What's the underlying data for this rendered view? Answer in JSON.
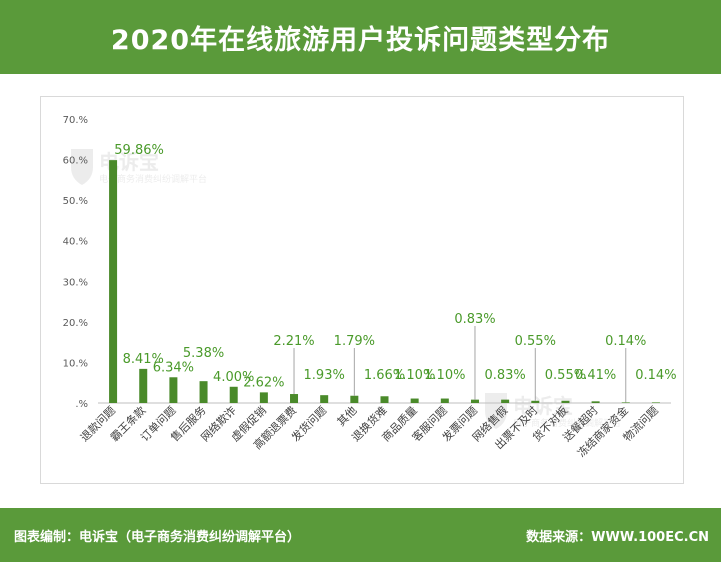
{
  "header": {
    "title": "2020年在线旅游用户投诉问题类型分布"
  },
  "footer": {
    "left": "图表编制：电诉宝（电子商务消费纠纷调解平台）",
    "right": "数据来源：WWW.100EC.CN"
  },
  "watermark": {
    "text": "电诉宝",
    "subtext": "电子商务消费纠纷调解平台"
  },
  "colors": {
    "accent": "#5a9a3a",
    "bar": "#4a8a2a",
    "label": "#4a9a2a",
    "tick": "#595959"
  },
  "chart_data": {
    "type": "bar",
    "title": "2020年在线旅游用户投诉问题类型分布",
    "xlabel": "",
    "ylabel": "",
    "ylim": [
      0,
      70
    ],
    "yticks": [
      0,
      10,
      20,
      30,
      40,
      50,
      60,
      70
    ],
    "ytick_labels": [
      ".%",
      "10.%",
      "20.%",
      "30.%",
      "40.%",
      "50.%",
      "60.%",
      "70.%"
    ],
    "grid": false,
    "categories": [
      "退款问题",
      "霸王条款",
      "订单问题",
      "售后服务",
      "网络欺诈",
      "虚假促销",
      "高额退票费",
      "发货问题",
      "其他",
      "退换货难",
      "商品质量",
      "客服问题",
      "发票问题",
      "网络售假",
      "出票不及时",
      "货不对板",
      "送餐超时",
      "冻结商家资金",
      "物流问题"
    ],
    "values": [
      59.86,
      8.41,
      6.34,
      5.38,
      4.0,
      2.62,
      2.21,
      1.93,
      1.79,
      1.66,
      1.1,
      1.1,
      0.83,
      0.83,
      0.55,
      0.55,
      0.41,
      0.14,
      0.14
    ],
    "data_labels": [
      "59.86%",
      "8.41%",
      "6.34%",
      "5.38%",
      "4.00%",
      "2.62%",
      "2.21%",
      "1.93%",
      "1.79%",
      "1.66%",
      "1.10%",
      "1.10%",
      "0.83%",
      "0.83%",
      "0.55%",
      "0.55%",
      "0.41%",
      "0.14%",
      "0.14%"
    ]
  }
}
